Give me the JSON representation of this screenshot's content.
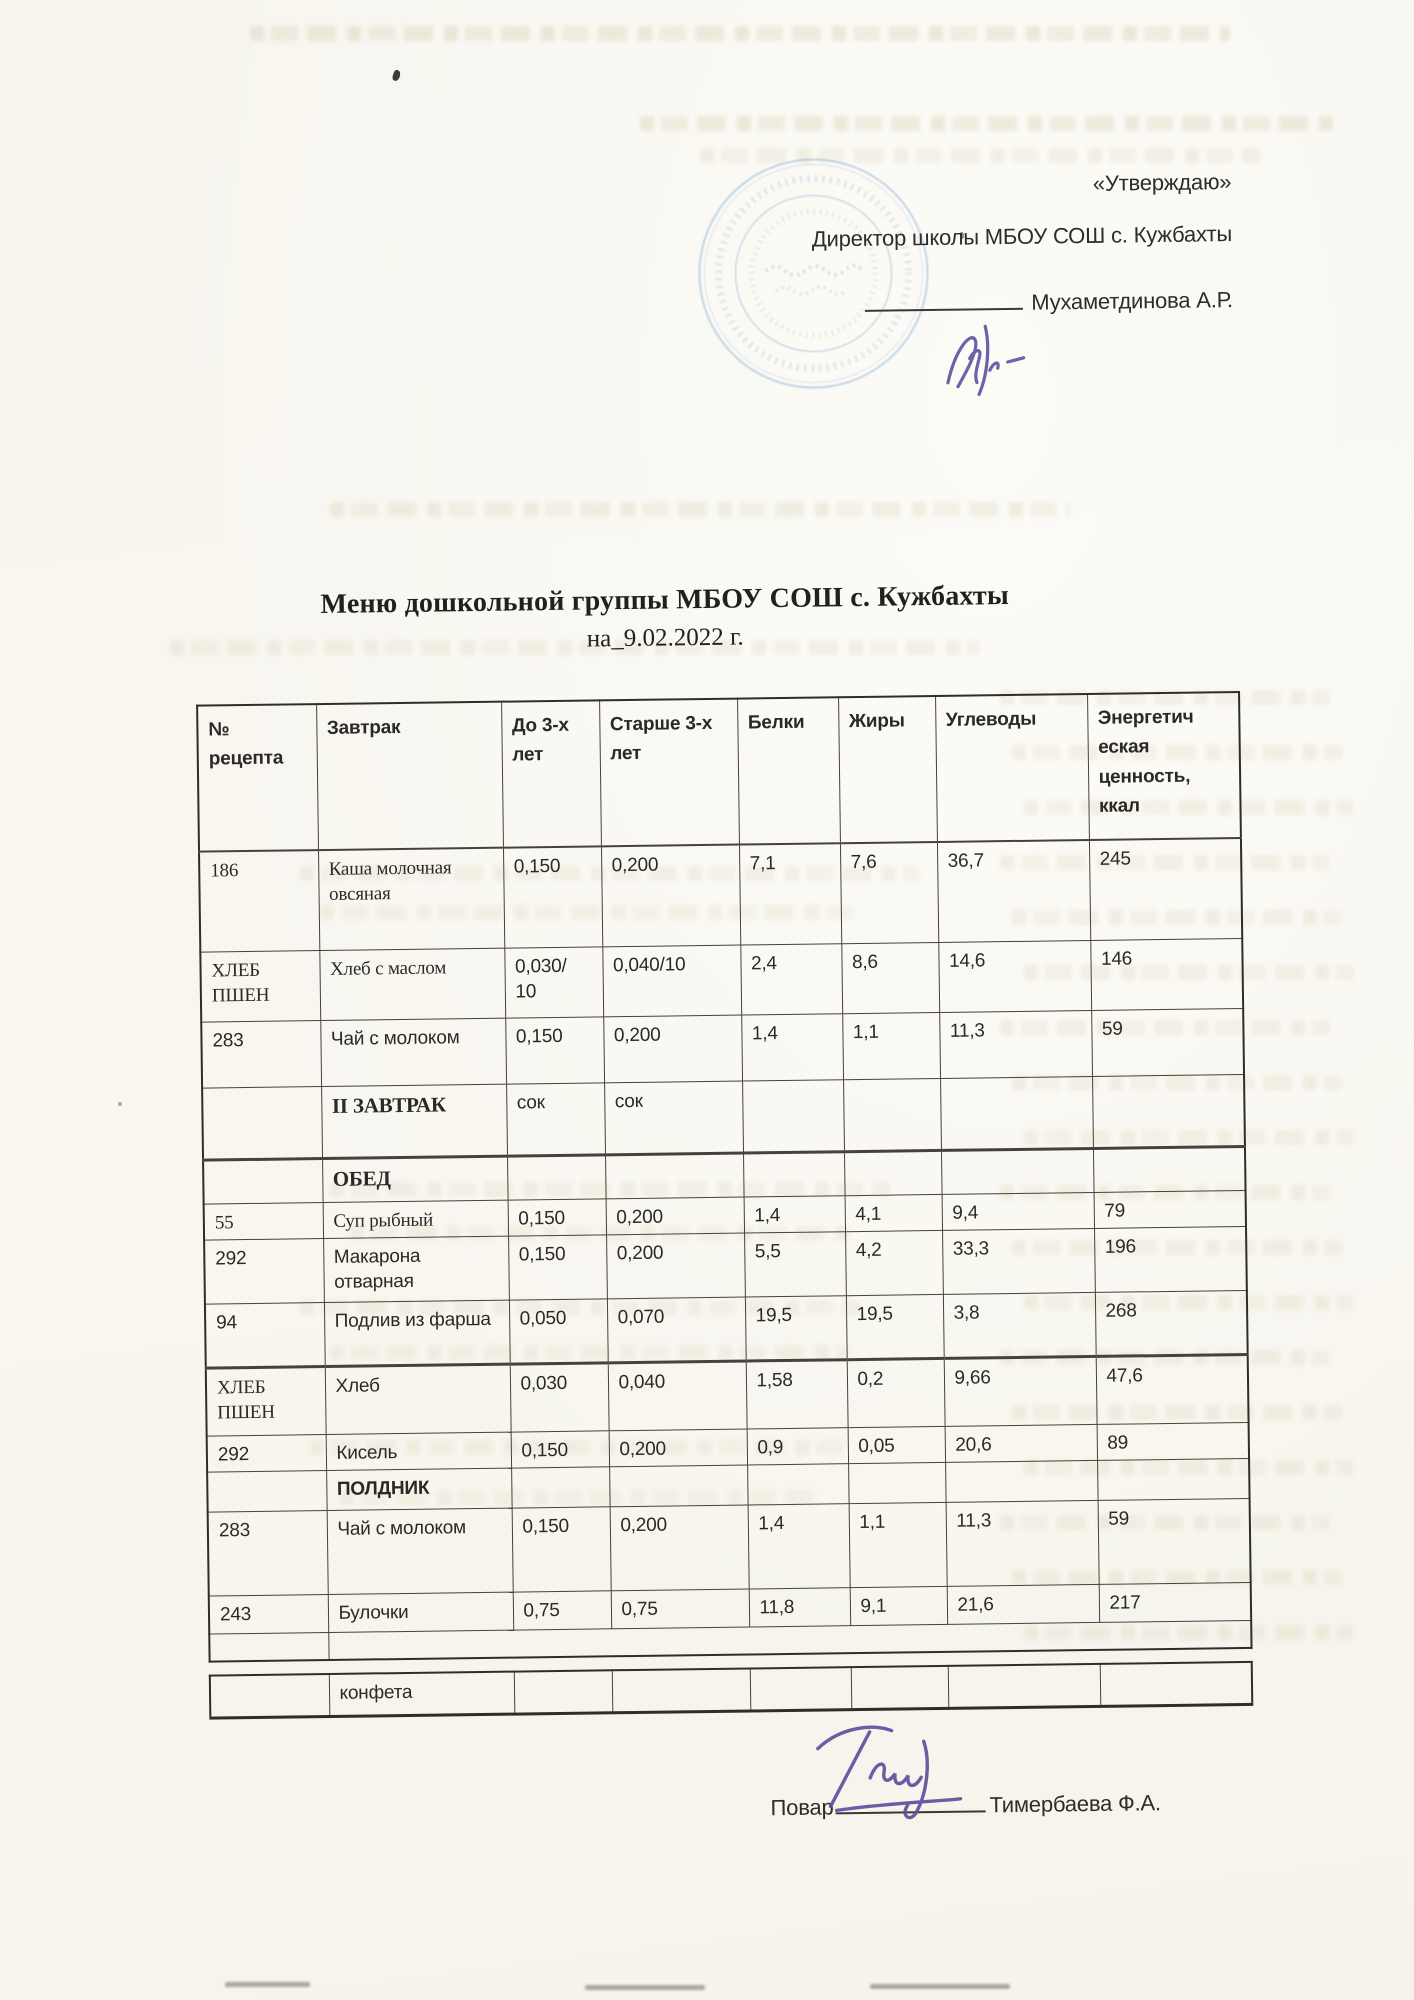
{
  "approval": {
    "approve_label": "«Утверждаю»",
    "director_line": "Директор школы МБОУ СОШ с. Кужбахты",
    "signature_name": "Мухаметдинова А.Р."
  },
  "title": {
    "line1": "Меню дошкольной группы МБОУ СОШ с. Кужбахты",
    "line2": "на_9.02.2022 г."
  },
  "table": {
    "headers": [
      "№ рецепта",
      "Завтрак",
      "До 3-х лет",
      "Старше 3-х лет",
      "Белки",
      "Жиры",
      "Углеводы",
      "Энергетич еская ценность, ккал"
    ],
    "rows": [
      [
        "186",
        "Каша молочная овсяная",
        "0,150",
        "0,200",
        "7,1",
        "7,6",
        "36,7",
        "245"
      ],
      [
        "ХЛЕБ ПШЕН",
        "Хлеб с маслом",
        "0,030/ 10",
        "0,040/10",
        "2,4",
        "8,6",
        "14,6",
        "146"
      ],
      [
        "283",
        "Чай с молоком",
        "0,150",
        "0,200",
        "1,4",
        "1,1",
        "11,3",
        "59"
      ],
      [
        "",
        "II ЗАВТРАК",
        "сок",
        "сок",
        "",
        "",
        "",
        ""
      ],
      [
        "",
        "ОБЕД",
        "",
        "",
        "",
        "",
        "",
        ""
      ],
      [
        "55",
        "Суп рыбный",
        "0,150",
        "0,200",
        "1,4",
        "4,1",
        "9,4",
        "79"
      ],
      [
        "292",
        "Макарона отварная",
        "0,150",
        "0,200",
        "5,5",
        "4,2",
        "33,3",
        "196"
      ],
      [
        "94",
        "Подлив из фарша",
        "0,050",
        "0,070",
        "19,5",
        "19,5",
        "3,8",
        "268"
      ],
      [
        "ХЛЕБ ПШЕН",
        "Хлеб",
        "0,030",
        "0,040",
        "1,58",
        "0,2",
        "9,66",
        "47,6"
      ],
      [
        "292",
        "Кисель",
        "0,150",
        "0,200",
        "0,9",
        "0,05",
        "20,6",
        "89"
      ],
      [
        "",
        "ПОЛДНИК",
        "",
        "",
        "",
        "",
        "",
        ""
      ],
      [
        "283",
        "Чай с молоком",
        "0,150",
        "0,200",
        "1,4",
        "1,1",
        "11,3",
        "59"
      ],
      [
        "243",
        "Булочки",
        "0,75",
        "0,75",
        "11,8",
        "9,1",
        "21,6",
        "217"
      ],
      [
        "",
        "",
        "",
        "",
        "",
        "",
        "",
        ""
      ],
      [
        "",
        "конфета",
        "",
        "",
        "",
        "",
        "",
        ""
      ]
    ]
  },
  "footer": {
    "cook_label": "Повар",
    "cook_name": "Тимербаева Ф.А."
  },
  "colors": {
    "stamp_blue": "#84abd8",
    "ink_purple": "#5e50a0",
    "paper": "#f7f5ee",
    "table_line": "#45423b"
  }
}
